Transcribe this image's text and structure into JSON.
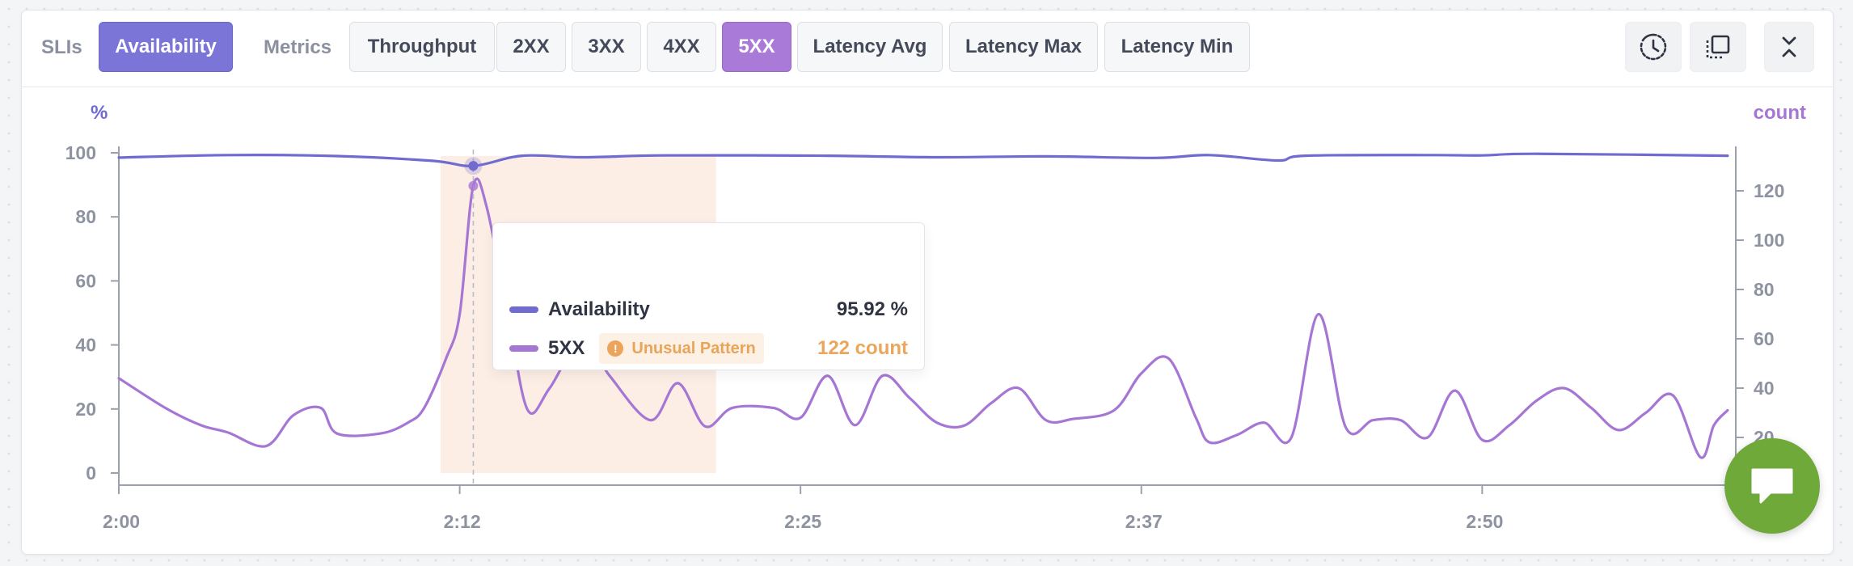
{
  "toolbar": {
    "slis_label": "SLIs",
    "metrics_label": "Metrics",
    "slis": [
      {
        "label": "Availability",
        "active": true
      }
    ],
    "metrics": [
      {
        "label": "Throughput",
        "active": false
      },
      {
        "label": "2XX",
        "active": false
      },
      {
        "label": "3XX",
        "active": false
      },
      {
        "label": "4XX",
        "active": false
      },
      {
        "label": "5XX",
        "active": true
      },
      {
        "label": "Latency Avg",
        "active": false
      },
      {
        "label": "Latency Max",
        "active": false
      },
      {
        "label": "Latency Min",
        "active": false
      }
    ],
    "icons": [
      "clock-history-icon",
      "select-area-icon",
      "collapse-icon"
    ]
  },
  "chart_data": {
    "type": "line",
    "left_unit": "%",
    "right_unit": "count",
    "x_ticks": [
      "2:00",
      "2:12",
      "2:25",
      "2:37",
      "2:50"
    ],
    "x_tick_minutes": [
      0,
      12.5,
      25,
      37.5,
      50
    ],
    "left_axis": {
      "ylim": [
        0,
        100
      ],
      "ticks": [
        0,
        20,
        40,
        60,
        80,
        100
      ]
    },
    "right_axis": {
      "ylim": [
        0,
        130
      ],
      "ticks": [
        20,
        40,
        60,
        80,
        100,
        120
      ]
    },
    "cursor_minute": 13.0,
    "highlight_range": [
      11.8,
      21.9
    ],
    "series": [
      {
        "name": "Availability",
        "axis": "left",
        "color": "#6f6bd0",
        "points": [
          [
            0,
            98.5
          ],
          [
            4,
            99.3
          ],
          [
            8,
            99
          ],
          [
            11.5,
            97.5
          ],
          [
            13,
            95.92
          ],
          [
            14.8,
            99.1
          ],
          [
            17,
            98.6
          ],
          [
            20,
            99.2
          ],
          [
            26,
            99.1
          ],
          [
            30,
            98.6
          ],
          [
            34,
            98.9
          ],
          [
            38,
            98.4
          ],
          [
            40,
            99.3
          ],
          [
            42.5,
            97.6
          ],
          [
            43.5,
            99.1
          ],
          [
            48,
            99.3
          ],
          [
            50,
            99.2
          ],
          [
            52,
            99.7
          ],
          [
            59,
            99.1
          ]
        ]
      },
      {
        "name": "5XX",
        "axis": "right",
        "color": "#a676d4",
        "points": [
          [
            0,
            44
          ],
          [
            1.7,
            32
          ],
          [
            3,
            25
          ],
          [
            4,
            22
          ],
          [
            5.4,
            16.5
          ],
          [
            6.4,
            29
          ],
          [
            7.4,
            32
          ],
          [
            8,
            21.6
          ],
          [
            9.6,
            21.6
          ],
          [
            10.6,
            26
          ],
          [
            11.2,
            32
          ],
          [
            12,
            52
          ],
          [
            12.5,
            70
          ],
          [
            13,
            122
          ],
          [
            13.5,
            113
          ],
          [
            14.3,
            68
          ],
          [
            15,
            31
          ],
          [
            15.8,
            40
          ],
          [
            17,
            60
          ],
          [
            18,
            45
          ],
          [
            19.5,
            27
          ],
          [
            20.5,
            42
          ],
          [
            21.5,
            24.5
          ],
          [
            22.5,
            32
          ],
          [
            24,
            32
          ],
          [
            25,
            28
          ],
          [
            26,
            45
          ],
          [
            27,
            25
          ],
          [
            28,
            45
          ],
          [
            29,
            36
          ],
          [
            30,
            26
          ],
          [
            31,
            24.8
          ],
          [
            32,
            34
          ],
          [
            33,
            40
          ],
          [
            34,
            27
          ],
          [
            35,
            27.5
          ],
          [
            36.5,
            31
          ],
          [
            37.5,
            46
          ],
          [
            38.5,
            52
          ],
          [
            39.5,
            28
          ],
          [
            40,
            18
          ],
          [
            41,
            21
          ],
          [
            42,
            26
          ],
          [
            43,
            20
          ],
          [
            44,
            70
          ],
          [
            45,
            24
          ],
          [
            46,
            27
          ],
          [
            47,
            27
          ],
          [
            48,
            20
          ],
          [
            49,
            39
          ],
          [
            50,
            19
          ],
          [
            51,
            25
          ],
          [
            52,
            35
          ],
          [
            53,
            40
          ],
          [
            54,
            32
          ],
          [
            55,
            23
          ],
          [
            56,
            30
          ],
          [
            57,
            37
          ],
          [
            58,
            12
          ],
          [
            58.5,
            25
          ],
          [
            59,
            31
          ]
        ]
      }
    ]
  },
  "tooltip": {
    "rows": [
      {
        "name": "Availability",
        "value": "95.92 %",
        "color": "#6f6bd0",
        "value_color": "#2f3342"
      },
      {
        "name": "5XX",
        "value": "122 count",
        "color": "#a676d4",
        "value_color": "#eaa65c",
        "badge": "Unusual Pattern"
      }
    ]
  },
  "chat": {
    "icon": "chat-bubble-icon"
  }
}
